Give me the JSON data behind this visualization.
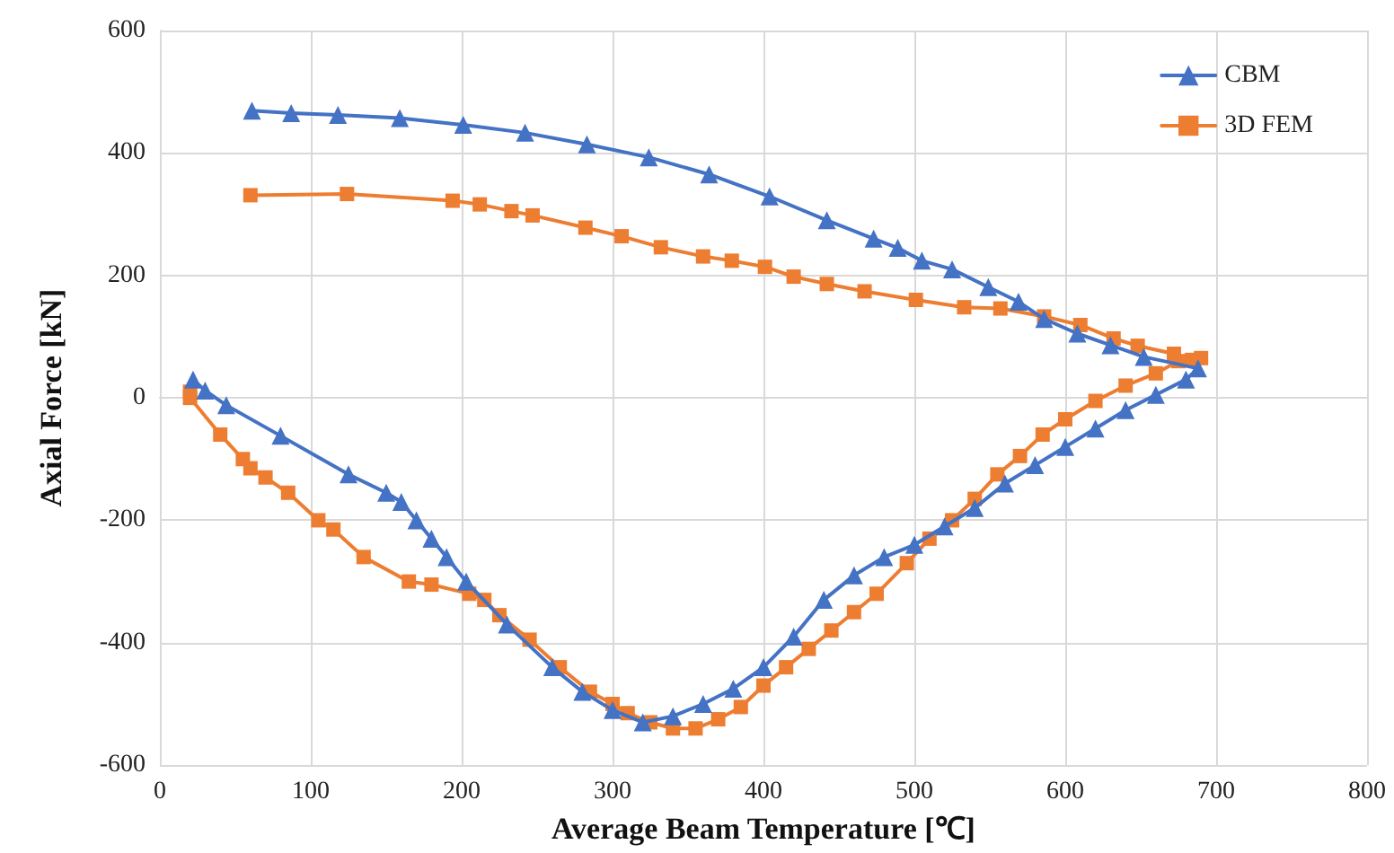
{
  "chart_data": {
    "type": "line",
    "xlabel": "Average Beam Temperature [℃]",
    "ylabel": "Axial Force [kN]",
    "xlim": [
      0,
      800
    ],
    "xticks": [
      0,
      100,
      200,
      300,
      400,
      500,
      600,
      700,
      800
    ],
    "ylim": [
      -600,
      600
    ],
    "yticks": [
      -600,
      -400,
      -200,
      0,
      200,
      400,
      600
    ],
    "grid": true,
    "legend": "top right",
    "line_style": "solid",
    "series": [
      {
        "name": "CBM",
        "color": "#4472c4",
        "marker": "triangle",
        "x": [
          22,
          30,
          44,
          80,
          125,
          150,
          160,
          170,
          180,
          190,
          203,
          230,
          260,
          280,
          300,
          320,
          340,
          360,
          380,
          400,
          420,
          440,
          460,
          480,
          500,
          520,
          540,
          560,
          580,
          600,
          620,
          640,
          660,
          680,
          688,
          652,
          630,
          608,
          586,
          569,
          549,
          525,
          505,
          489,
          473,
          442,
          404,
          364,
          324,
          283,
          242,
          201,
          159,
          118,
          87,
          61
        ],
        "values": [
          30,
          12,
          -12,
          -62,
          -125,
          -155,
          -170,
          -200,
          -230,
          -260,
          -300,
          -370,
          -440,
          -480,
          -510,
          -530,
          -520,
          -500,
          -475,
          -440,
          -390,
          -330,
          -290,
          -260,
          -240,
          -210,
          -180,
          -140,
          -110,
          -80,
          -50,
          -20,
          5,
          30,
          48,
          67,
          86,
          105,
          129,
          157,
          181,
          210,
          224,
          245,
          260,
          290,
          329,
          365,
          393,
          414,
          433,
          446,
          457,
          462,
          465,
          469
        ]
      },
      {
        "name": "3D FEM",
        "color": "#ed7d31",
        "marker": "square",
        "x": [
          20,
          20,
          40,
          55,
          60,
          70,
          85,
          105,
          115,
          135,
          165,
          180,
          205,
          215,
          225,
          245,
          265,
          285,
          300,
          310,
          325,
          340,
          355,
          370,
          385,
          400,
          415,
          430,
          445,
          460,
          475,
          495,
          510,
          525,
          540,
          555,
          570,
          585,
          600,
          620,
          640,
          660,
          675,
          690,
          684,
          672,
          648,
          632,
          610,
          586,
          557,
          533,
          501,
          467,
          442,
          420,
          401,
          379,
          360,
          332,
          306,
          282,
          247,
          233,
          212,
          194,
          124,
          60
        ],
        "values": [
          10,
          0,
          -60,
          -100,
          -115,
          -130,
          -155,
          -200,
          -215,
          -260,
          -300,
          -305,
          -320,
          -330,
          -355,
          -395,
          -440,
          -480,
          -500,
          -515,
          -530,
          -540,
          -540,
          -525,
          -505,
          -470,
          -440,
          -410,
          -380,
          -350,
          -320,
          -270,
          -230,
          -200,
          -165,
          -125,
          -95,
          -60,
          -35,
          -5,
          20,
          40,
          60,
          65,
          62,
          72,
          85,
          97,
          119,
          133,
          146,
          148,
          160,
          174,
          186,
          198,
          214,
          224,
          231,
          246,
          264,
          278,
          298,
          305,
          316,
          322,
          333,
          331
        ]
      }
    ]
  }
}
